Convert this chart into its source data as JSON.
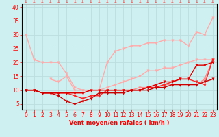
{
  "xlabel": "Vent moyen/en rafales ( km/h )",
  "bg_color": "#cff0f0",
  "grid_color": "#aadddd",
  "text_color": "#ff0000",
  "x": [
    0,
    1,
    2,
    3,
    4,
    5,
    6,
    7,
    8,
    9,
    10,
    11,
    12,
    13,
    14,
    15,
    16,
    17,
    18,
    19,
    20,
    21,
    22,
    23
  ],
  "lines": [
    {
      "color": "#ffaaaa",
      "lw": 1.0,
      "y": [
        30,
        21,
        20,
        20,
        20,
        16,
        11,
        10,
        10,
        10,
        20,
        24,
        25,
        26,
        26,
        27,
        27,
        28,
        28,
        28,
        26,
        31,
        30,
        36
      ]
    },
    {
      "color": "#ffaaaa",
      "lw": 1.0,
      "y": [
        null,
        null,
        null,
        14,
        13,
        15,
        10,
        10,
        10,
        10,
        11,
        12,
        13,
        14,
        15,
        17,
        17,
        18,
        18,
        19,
        20,
        21,
        21,
        21
      ]
    },
    {
      "color": "#ff8888",
      "lw": 1.0,
      "y": [
        10,
        10,
        9,
        9,
        9,
        9,
        9,
        9,
        10,
        10,
        10,
        10,
        10,
        10,
        11,
        11,
        11,
        12,
        12,
        12,
        12,
        12,
        14,
        21
      ]
    },
    {
      "color": "#ff2222",
      "lw": 1.0,
      "y": [
        10,
        10,
        9,
        9,
        9,
        9,
        8,
        7,
        8,
        8,
        10,
        10,
        10,
        10,
        10,
        11,
        11,
        12,
        13,
        14,
        14,
        13,
        12,
        21
      ]
    },
    {
      "color": "#dd0000",
      "lw": 1.0,
      "y": [
        10,
        10,
        9,
        9,
        9,
        9,
        9,
        9,
        10,
        10,
        10,
        10,
        10,
        10,
        10,
        11,
        12,
        13,
        13,
        14,
        14,
        19,
        19,
        20
      ]
    },
    {
      "color": "#cc0000",
      "lw": 1.0,
      "y": [
        10,
        10,
        9,
        9,
        8,
        6,
        5,
        6,
        7,
        9,
        9,
        9,
        9,
        10,
        10,
        10,
        11,
        11,
        12,
        12,
        12,
        12,
        13,
        14
      ]
    }
  ],
  "ylim": [
    3,
    41
  ],
  "yticks": [
    5,
    10,
    15,
    20,
    25,
    30,
    35,
    40
  ],
  "xlim": [
    -0.5,
    23.5
  ],
  "figsize": [
    3.2,
    2.0
  ],
  "dpi": 100
}
